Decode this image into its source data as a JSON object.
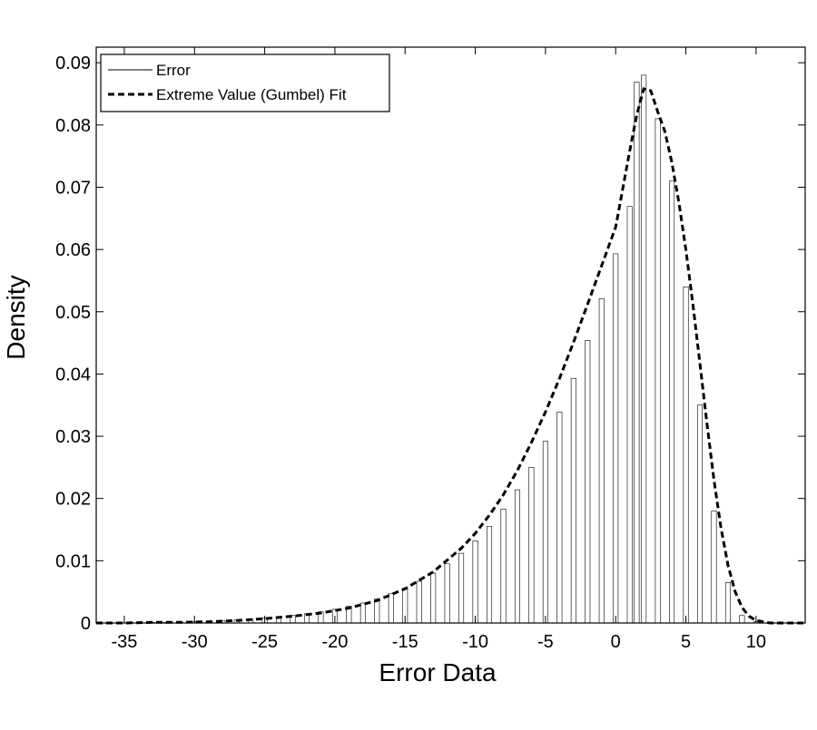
{
  "chart_data": {
    "type": "bar",
    "xlabel": "Error Data",
    "ylabel": "Density",
    "xlim": [
      -37,
      13.5
    ],
    "ylim": [
      0,
      0.0925
    ],
    "grid": false,
    "legend_position": "top-left",
    "x_ticks": [
      -35,
      -30,
      -25,
      -20,
      -15,
      -10,
      -5,
      0,
      5,
      10
    ],
    "y_ticks": [
      0,
      0.01,
      0.02,
      0.03,
      0.04,
      0.05,
      0.06,
      0.07,
      0.08,
      0.09
    ],
    "x_tick_labels": [
      "-35",
      "-30",
      "-25",
      "-20",
      "-15",
      "-10",
      "-5",
      "0",
      "5",
      "10"
    ],
    "y_tick_labels": [
      "0",
      "0.01",
      "0.02",
      "0.03",
      "0.04",
      "0.05",
      "0.06",
      "0.07",
      "0.08",
      "0.09"
    ],
    "bin_width": 0.35,
    "series": [
      {
        "name": "Error",
        "style": "histogram",
        "bin_centers": [
          -35,
          -34,
          -33,
          -32,
          -31,
          -30,
          -29,
          -28,
          -27,
          -26,
          -25,
          -24,
          -23,
          -22,
          -21,
          -20,
          -19,
          -18,
          -17,
          -16,
          -15,
          -14,
          -13,
          -12,
          -11,
          -10,
          -9,
          -8,
          -7,
          -6,
          -5,
          -4,
          -3,
          -2,
          -1,
          0,
          1,
          1.5,
          2,
          3,
          4,
          5,
          6,
          7,
          8,
          9,
          10,
          11,
          12,
          13
        ],
        "values": [
          0.0,
          0.0,
          0.0001,
          0.0001,
          0.0001,
          0.0002,
          0.0003,
          0.0004,
          0.0005,
          0.0006,
          0.0008,
          0.001,
          0.0012,
          0.0015,
          0.0018,
          0.0022,
          0.0027,
          0.0032,
          0.0039,
          0.0047,
          0.0056,
          0.0067,
          0.008,
          0.0095,
          0.0112,
          0.0132,
          0.0155,
          0.0183,
          0.0214,
          0.025,
          0.0292,
          0.0339,
          0.0393,
          0.0454,
          0.0521,
          0.0593,
          0.0669,
          0.0869,
          0.088,
          0.081,
          0.071,
          0.054,
          0.035,
          0.018,
          0.0065,
          0.0012,
          0.0002,
          0.0,
          0.0,
          0.0
        ]
      },
      {
        "name": "Extreme Value (Gumbel) Fit",
        "style": "dashed-line",
        "x": [
          -37,
          -35,
          -33,
          -31,
          -29,
          -27,
          -25,
          -23,
          -21,
          -19,
          -17,
          -15,
          -13,
          -11,
          -10,
          -9,
          -8,
          -7,
          -6,
          -5,
          -4,
          -3,
          -2,
          -1,
          0,
          0.5,
          1,
          1.5,
          2,
          2.5,
          3,
          3.5,
          4,
          4.5,
          5,
          5.5,
          6,
          6.5,
          7,
          7.5,
          8,
          8.5,
          9,
          9.5,
          10,
          11,
          12,
          13.5
        ],
        "y": [
          0.0,
          0.0,
          0.0001,
          0.0001,
          0.0002,
          0.0004,
          0.0007,
          0.0011,
          0.0016,
          0.0024,
          0.0036,
          0.0055,
          0.0082,
          0.012,
          0.0144,
          0.0173,
          0.0206,
          0.0245,
          0.029,
          0.0339,
          0.0393,
          0.0451,
          0.0512,
          0.0574,
          0.0636,
          0.0697,
          0.0758,
          0.0816,
          0.0858,
          0.0855,
          0.0821,
          0.079,
          0.074,
          0.0676,
          0.06,
          0.0512,
          0.0417,
          0.0321,
          0.023,
          0.0153,
          0.0093,
          0.0051,
          0.0025,
          0.0011,
          0.0004,
          0.0,
          0.0,
          0.0
        ]
      }
    ]
  }
}
